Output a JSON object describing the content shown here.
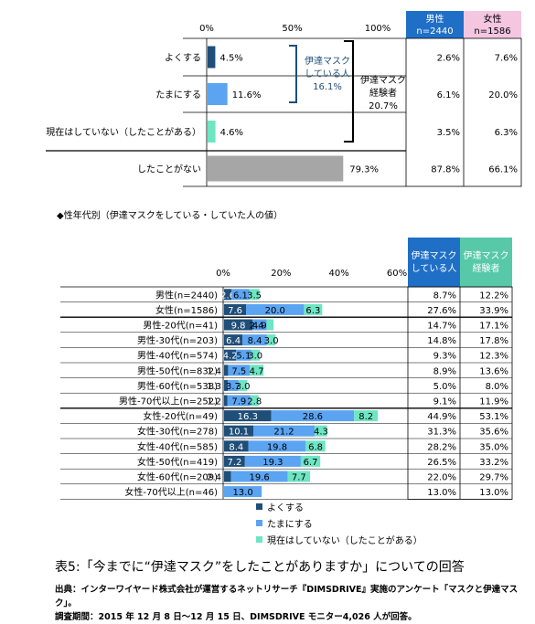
{
  "colors": {
    "dark": "#1f4e79",
    "mid": "#5ba4f2",
    "light": "#6ee5c3",
    "gray": "#a6a6a6",
    "male_header": "#1f6fc6",
    "female_header": "#f4c6e0",
    "sub_header": "#1f6fc6",
    "sub_header2": "#57c9a8"
  },
  "chart_data": [
    {
      "type": "bar",
      "orientation": "horizontal",
      "axis_ticks": [
        "0%",
        "50%",
        "100%"
      ],
      "xlim": [
        0,
        100
      ],
      "categories": [
        "よくする",
        "たまにする",
        "現在はしていない（したことがある）",
        "したことがない"
      ],
      "values": [
        4.5,
        11.6,
        4.6,
        79.3
      ],
      "value_labels": [
        "4.5%",
        "11.6%",
        "4.6%",
        "79.3%"
      ],
      "brackets": [
        {
          "text": [
            "伊達マスク",
            "している人",
            "16.1%"
          ]
        },
        {
          "text": [
            "伊達マスク",
            "経験者",
            "20.7%"
          ]
        }
      ],
      "table": {
        "headers": [
          [
            "男性",
            "n=2440"
          ],
          [
            "女性",
            "n=1586"
          ]
        ],
        "rows": [
          [
            "2.6%",
            "7.6%"
          ],
          [
            "6.1%",
            "20.0%"
          ],
          [
            "3.5%",
            "6.3%"
          ],
          [
            "87.8%",
            "66.1%"
          ]
        ]
      }
    },
    {
      "type": "bar",
      "orientation": "horizontal-stacked",
      "section_title": "◆性年代別（伊達マスクをしている・していた人の値）",
      "axis_ticks": [
        "0%",
        "20%",
        "40%",
        "60%"
      ],
      "xlim": [
        0,
        60
      ],
      "categories": [
        "男性(n=2440)",
        "女性(n=1586)",
        "男性-20代(n=41)",
        "男性-30代(n=203)",
        "男性-40代(n=574)",
        "男性-50代(n=832)",
        "男性-60代(n=538)",
        "男性-70代以上(n=252)",
        "女性-20代(n=49)",
        "女性-30代(n=278)",
        "女性-40代(n=585)",
        "女性-50代(n=419)",
        "女性-60代(n=209)",
        "女性-70代以上(n=46)"
      ],
      "series": [
        {
          "name": "よくする",
          "values": [
            2.6,
            7.6,
            9.8,
            6.4,
            4.2,
            1.4,
            1.3,
            1.2,
            16.3,
            10.1,
            8.4,
            7.2,
            2.4,
            0
          ]
        },
        {
          "name": "たまにする",
          "values": [
            6.1,
            20.0,
            4.9,
            8.4,
            5.1,
            7.5,
            3.7,
            7.9,
            28.6,
            21.2,
            19.8,
            19.3,
            19.6,
            13.0
          ]
        },
        {
          "name": "現在はしていない（したことがある）",
          "values": [
            3.5,
            6.3,
            2.4,
            3.0,
            3.0,
            4.7,
            3.0,
            2.8,
            8.2,
            4.3,
            6.8,
            6.7,
            7.7,
            0
          ]
        }
      ],
      "table": {
        "headers": [
          [
            "伊達マスク",
            "している人"
          ],
          [
            "伊達マスク",
            "経験者"
          ]
        ],
        "rows": [
          [
            "8.7%",
            "12.2%"
          ],
          [
            "27.6%",
            "33.9%"
          ],
          [
            "14.7%",
            "17.1%"
          ],
          [
            "14.8%",
            "17.8%"
          ],
          [
            "9.3%",
            "12.3%"
          ],
          [
            "8.9%",
            "13.6%"
          ],
          [
            "5.0%",
            "8.0%"
          ],
          [
            "9.1%",
            "11.9%"
          ],
          [
            "44.9%",
            "53.1%"
          ],
          [
            "31.3%",
            "35.6%"
          ],
          [
            "28.2%",
            "35.0%"
          ],
          [
            "26.5%",
            "33.2%"
          ],
          [
            "22.0%",
            "29.7%"
          ],
          [
            "13.0%",
            "13.0%"
          ]
        ]
      }
    }
  ],
  "caption": "表5:「今までに“伊達マスク”をしたことがありますか」についての回答",
  "source_lines": [
    "出典：インターワイヤード株式会社が運営するネットリサーチ『DIMSDRIVE』実施のアンケート「マスクと伊達マスク」。",
    "調査期間：2015 年 12 月 8 日～12 月 15 日、DIMSDRIVE モニター4,026 人が回答。"
  ]
}
